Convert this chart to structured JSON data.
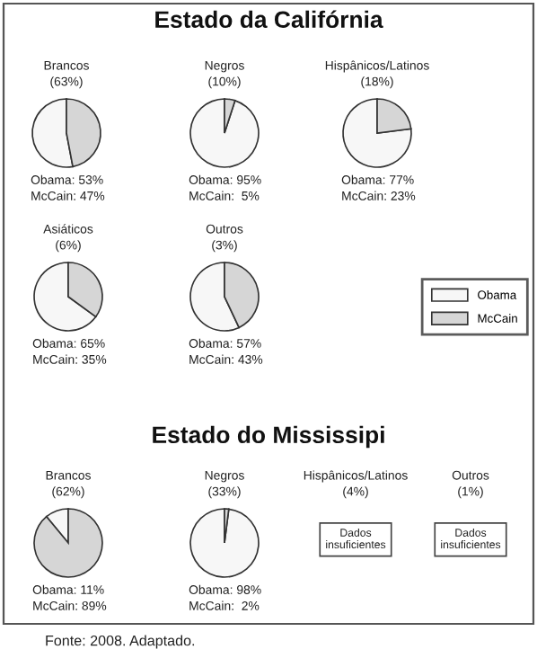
{
  "chart_data": [
    {
      "type": "other",
      "title": "Estado da Califórnia"
    },
    {
      "type": "pie",
      "title": "Brancos",
      "subtitle": "(63%)",
      "categories": [
        null,
        null
      ],
      "values": [
        53,
        47
      ],
      "colors": [
        "#f7f7f7",
        "#d6d6d6"
      ],
      "annotations": [
        "Obama: 53%",
        "McCain: 47%"
      ]
    },
    {
      "type": "pie",
      "title": "Negros",
      "subtitle": "(10%)",
      "categories": [
        null,
        null
      ],
      "values": [
        95,
        5
      ],
      "colors": [
        "#f7f7f7",
        "#d6d6d6"
      ],
      "annotations": [
        "Obama: 95%",
        "McCain:  5%"
      ]
    },
    {
      "type": "pie",
      "title": "Hispânicos/Latinos",
      "subtitle": "(18%)",
      "categories": [
        null,
        null
      ],
      "values": [
        77,
        23
      ],
      "colors": [
        "#f7f7f7",
        "#d6d6d6"
      ],
      "annotations": [
        "Obama: 77%",
        "McCain: 23%"
      ]
    },
    {
      "type": "pie",
      "title": "Asiáticos",
      "subtitle": "(6%)",
      "categories": [
        null,
        null
      ],
      "values": [
        65,
        35
      ],
      "colors": [
        "#f7f7f7",
        "#d6d6d6"
      ],
      "annotations": [
        "Obama: 65%",
        "McCain: 35%"
      ]
    },
    {
      "type": "pie",
      "title": "Outros",
      "subtitle": "(3%)",
      "categories": [
        "Obama",
        "McCain"
      ],
      "values": [
        57,
        43
      ],
      "colors": [
        "#f7f7f7",
        "#d6d6d6"
      ],
      "annotations": [
        "Obama: 57%",
        "McCain: 43%"
      ],
      "legend": "right"
    },
    {
      "type": "other",
      "title": "Estado do Mississipi"
    },
    {
      "type": "pie",
      "title": "Brancos",
      "subtitle": "(62%)",
      "categories": [
        null,
        null
      ],
      "values": [
        11,
        89
      ],
      "colors": [
        "#f7f7f7",
        "#d6d6d6"
      ],
      "annotations": [
        "Obama: 11%",
        "McCain: 89%"
      ]
    },
    {
      "type": "pie",
      "title": "Negros",
      "subtitle": "(33%)",
      "categories": [
        null,
        null
      ],
      "values": [
        98,
        2
      ],
      "colors": [
        "#f7f7f7",
        "#d6d6d6"
      ],
      "annotations": [
        "Obama: 98%",
        "McCain:  2%"
      ]
    },
    {
      "type": "other",
      "title": "Hispânicos/Latinos",
      "subtitle": "(4%)",
      "annotations": [
        "Dados insuficientes"
      ]
    },
    {
      "type": "other",
      "title": "Outros",
      "subtitle": "(1%)",
      "annotations": [
        "Dados insuficientes"
      ]
    },
    {
      "type": "other",
      "annotations": [
        "Fonte: 2008. Adaptado."
      ]
    }
  ]
}
